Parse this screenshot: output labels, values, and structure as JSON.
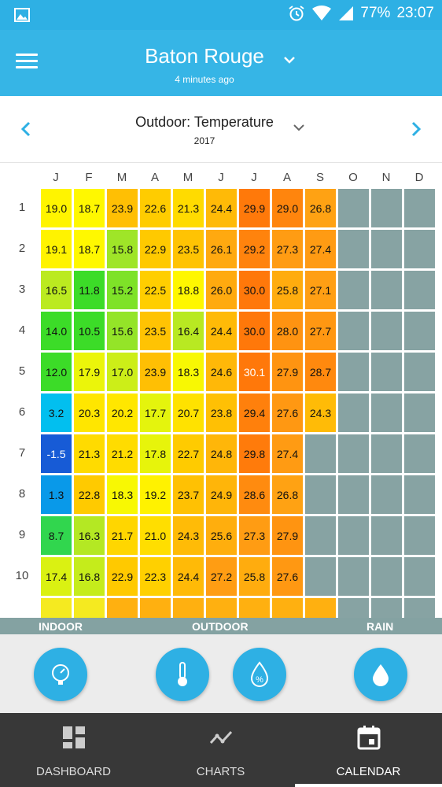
{
  "status": {
    "battery": "77%",
    "time": "23:07"
  },
  "header": {
    "title": "Baton Rouge",
    "subtitle": "4 minutes ago"
  },
  "metric": {
    "title": "Outdoor: Temperature",
    "year": "2017"
  },
  "calendar": {
    "months": [
      "J",
      "F",
      "M",
      "A",
      "M",
      "J",
      "J",
      "A",
      "S",
      "O",
      "N",
      "D"
    ],
    "days": [
      "1",
      "2",
      "3",
      "4",
      "5",
      "6",
      "7",
      "8",
      "9",
      "10"
    ],
    "rows": [
      [
        "19.0",
        "18.7",
        "23.9",
        "22.6",
        "21.3",
        "24.4",
        "29.9",
        "29.0",
        "26.8",
        "",
        "",
        ""
      ],
      [
        "19.1",
        "18.7",
        "15.8",
        "22.9",
        "23.5",
        "26.1",
        "29.2",
        "27.3",
        "27.4",
        "",
        "",
        ""
      ],
      [
        "16.5",
        "11.8",
        "15.2",
        "22.5",
        "18.8",
        "26.0",
        "30.0",
        "25.8",
        "27.1",
        "",
        "",
        ""
      ],
      [
        "14.0",
        "10.5",
        "15.6",
        "23.5",
        "16.4",
        "24.4",
        "30.0",
        "28.0",
        "27.7",
        "",
        "",
        ""
      ],
      [
        "12.0",
        "17.9",
        "17.0",
        "23.9",
        "18.3",
        "24.6",
        "30.1",
        "27.9",
        "28.7",
        "",
        "",
        ""
      ],
      [
        "3.2",
        "20.3",
        "20.2",
        "17.7",
        "20.7",
        "23.8",
        "29.4",
        "27.6",
        "24.3",
        "",
        "",
        ""
      ],
      [
        "-1.5",
        "21.3",
        "21.2",
        "17.8",
        "22.7",
        "24.8",
        "29.8",
        "27.4",
        "",
        "",
        "",
        ""
      ],
      [
        "1.3",
        "22.8",
        "18.3",
        "19.2",
        "23.7",
        "24.9",
        "28.6",
        "26.8",
        "",
        "",
        "",
        ""
      ],
      [
        "8.7",
        "16.3",
        "21.7",
        "21.0",
        "24.3",
        "25.6",
        "27.3",
        "27.9",
        "",
        "",
        "",
        ""
      ],
      [
        "17.4",
        "16.8",
        "22.9",
        "22.3",
        "24.4",
        "27.2",
        "25.8",
        "27.6",
        "",
        "",
        "",
        ""
      ]
    ]
  },
  "sections": {
    "indoor": "INDOOR",
    "outdoor": "OUTDOOR",
    "rain": "RAIN"
  },
  "sensors": [
    {
      "icon": "pressure-gauge-icon"
    },
    {
      "icon": "thermometer-icon"
    },
    {
      "icon": "humidity-drop-icon"
    },
    {
      "icon": "rain-drop-icon"
    }
  ],
  "bottom_nav": {
    "items": [
      {
        "label": "DASHBOARD",
        "icon": "dashboard-icon"
      },
      {
        "label": "CHARTS",
        "icon": "charts-icon"
      },
      {
        "label": "CALENDAR",
        "icon": "calendar-icon",
        "active": true
      }
    ]
  },
  "colors": {
    "app_bar": "#36b5e6",
    "status_bar": "#2eb0e4",
    "empty_cell": "#87a3a3",
    "section_strip": "#84a2a2",
    "bottom_nav": "#383838"
  }
}
